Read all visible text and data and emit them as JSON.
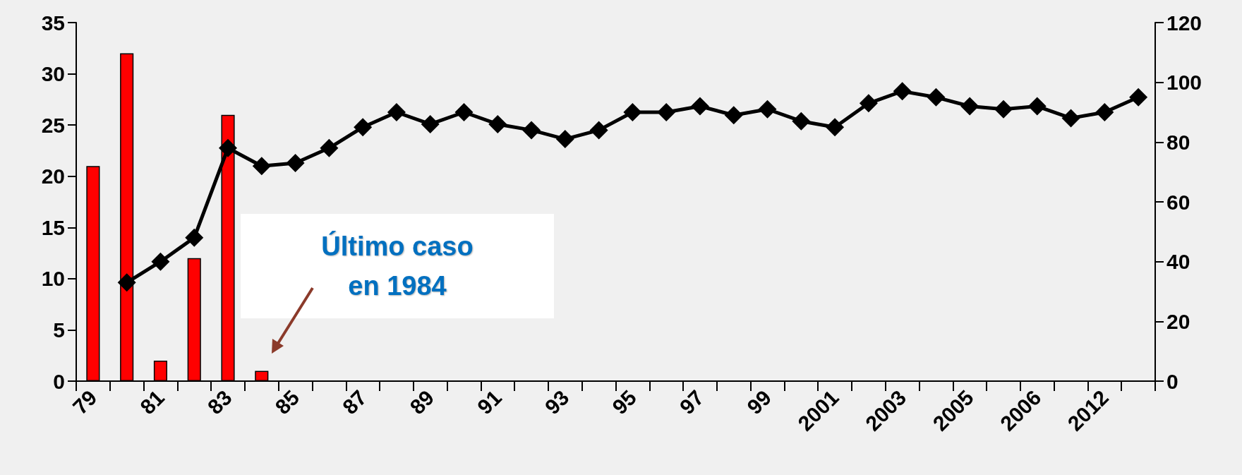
{
  "chart_data": {
    "type": "bar",
    "categories": [
      "79",
      null,
      "81",
      null,
      "83",
      null,
      "85",
      null,
      "87",
      null,
      "89",
      null,
      "91",
      null,
      "93",
      null,
      "95",
      null,
      "97",
      null,
      "99",
      null,
      "2001",
      null,
      "2003",
      null,
      "2005",
      null,
      "2006",
      null,
      "2012",
      null
    ],
    "series": [
      {
        "color": "#ff0000",
        "values": [
          21,
          32,
          2,
          12,
          26,
          1,
          null,
          null,
          null,
          null,
          null,
          null,
          null,
          null,
          null,
          null,
          null,
          null,
          null,
          null,
          null,
          null,
          null,
          null,
          null,
          null,
          null,
          null,
          null,
          null,
          null,
          null
        ]
      },
      {
        "type": "line",
        "axis": "y2",
        "color": "#000000",
        "marker": "diamond",
        "values": [
          null,
          33,
          40,
          48,
          78,
          72,
          73,
          78,
          85,
          90,
          86,
          90,
          86,
          84,
          81,
          84,
          90,
          90,
          92,
          89,
          91,
          87,
          85,
          93,
          97,
          95,
          92,
          91,
          92,
          88,
          90,
          95
        ]
      }
    ],
    "ylim": [
      0,
      35
    ],
    "yticks": [
      0,
      5,
      10,
      15,
      20,
      25,
      30,
      35
    ],
    "y2lim": [
      0,
      120
    ],
    "y2ticks": [
      0,
      20,
      40,
      60,
      80,
      100,
      120
    ],
    "grid": false,
    "annotations": [
      "Último caso\nen 1984"
    ]
  }
}
